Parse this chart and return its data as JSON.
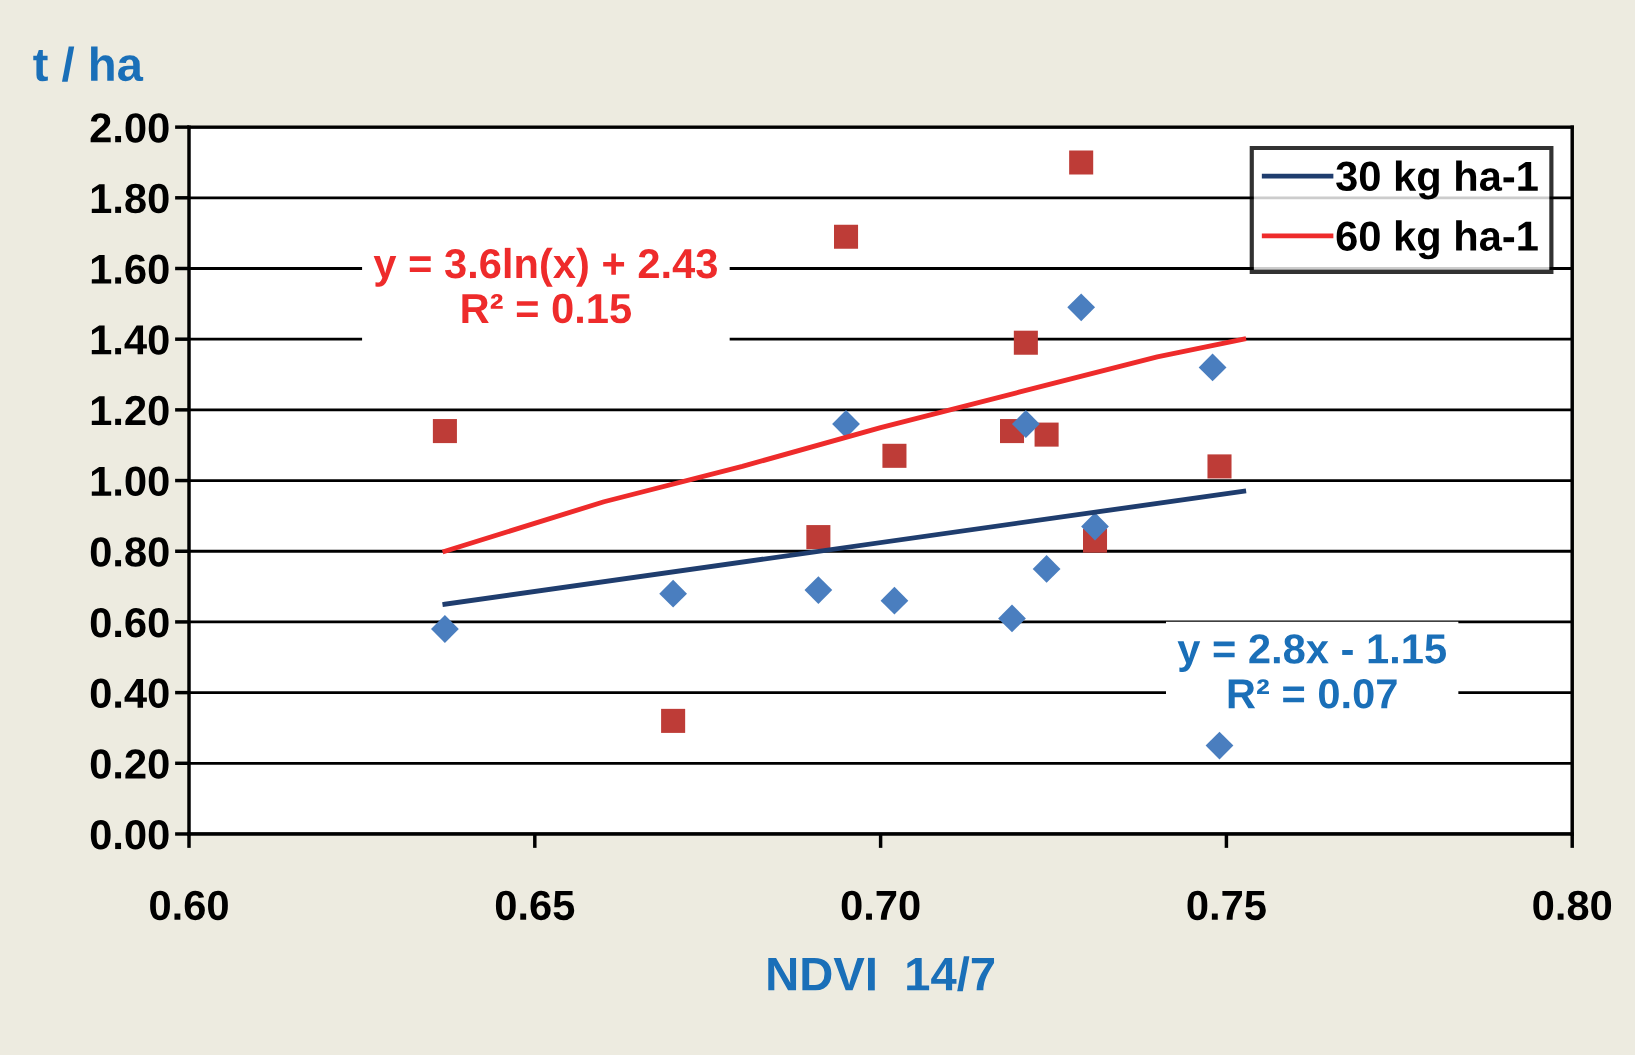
{
  "chart_data": {
    "type": "scatter",
    "xlabel": "NDVI  14/7",
    "ylabel": "t / ha",
    "xlim": [
      0.6,
      0.8
    ],
    "xticks": [
      {
        "value": 0.6,
        "label": "0.60"
      },
      {
        "value": 0.65,
        "label": "0.65"
      },
      {
        "value": 0.7,
        "label": "0.70"
      },
      {
        "value": 0.75,
        "label": "0.75"
      },
      {
        "value": 0.8,
        "label": "0.80"
      }
    ],
    "ylim": [
      0,
      2
    ],
    "yticks": [
      {
        "value": 0,
        "label": "0.00"
      },
      {
        "value": 0.2,
        "label": "0.20"
      },
      {
        "value": 0.4,
        "label": "0.40"
      },
      {
        "value": 0.6,
        "label": "0.60"
      },
      {
        "value": 0.8,
        "label": "0.80"
      },
      {
        "value": 1.0,
        "label": "1.00"
      },
      {
        "value": 1.2,
        "label": "1.20"
      },
      {
        "value": 1.4,
        "label": "1.40"
      },
      {
        "value": 1.6,
        "label": "1.60"
      },
      {
        "value": 1.8,
        "label": "1.80"
      },
      {
        "value": 2.0,
        "label": "2.00"
      }
    ],
    "grid": "y",
    "legend": "top right",
    "series": [
      {
        "color": "#4a7ebf",
        "marker": "diamond",
        "x": [
          0.637,
          0.67,
          0.691,
          0.695,
          0.702,
          0.719,
          0.721,
          0.724,
          0.729,
          0.731,
          0.748,
          0.749
        ],
        "values": [
          0.58,
          0.68,
          0.69,
          1.16,
          0.66,
          0.61,
          1.16,
          0.75,
          1.49,
          0.87,
          1.32,
          0.25
        ]
      },
      {
        "color": "#be3c37",
        "marker": "square",
        "x": [
          0.637,
          0.67,
          0.691,
          0.695,
          0.702,
          0.719,
          0.721,
          0.724,
          0.729,
          0.731,
          0.749
        ],
        "values": [
          1.14,
          0.32,
          0.84,
          1.69,
          1.07,
          1.14,
          1.39,
          1.13,
          1.9,
          0.83,
          1.04
        ]
      },
      {
        "type": "line",
        "name": "30 kg ha-1",
        "color": "#1f3d6e",
        "marker": "none",
        "x": [
          0.637,
          0.7525
        ],
        "values": [
          0.65,
          0.97
        ]
      },
      {
        "type": "line",
        "name": "60 kg ha-1",
        "color": "#ee2b2b",
        "marker": "none",
        "x": [
          0.637,
          0.66,
          0.68,
          0.7,
          0.72,
          0.74,
          0.7525
        ],
        "values": [
          0.8,
          0.94,
          1.04,
          1.15,
          1.25,
          1.35,
          1.4
        ]
      }
    ],
    "annotations": [
      "y = 3.6ln(x) + 2.43\nR² = 0.15",
      "y = 2.8x - 1.15\nR² = 0.07"
    ]
  }
}
